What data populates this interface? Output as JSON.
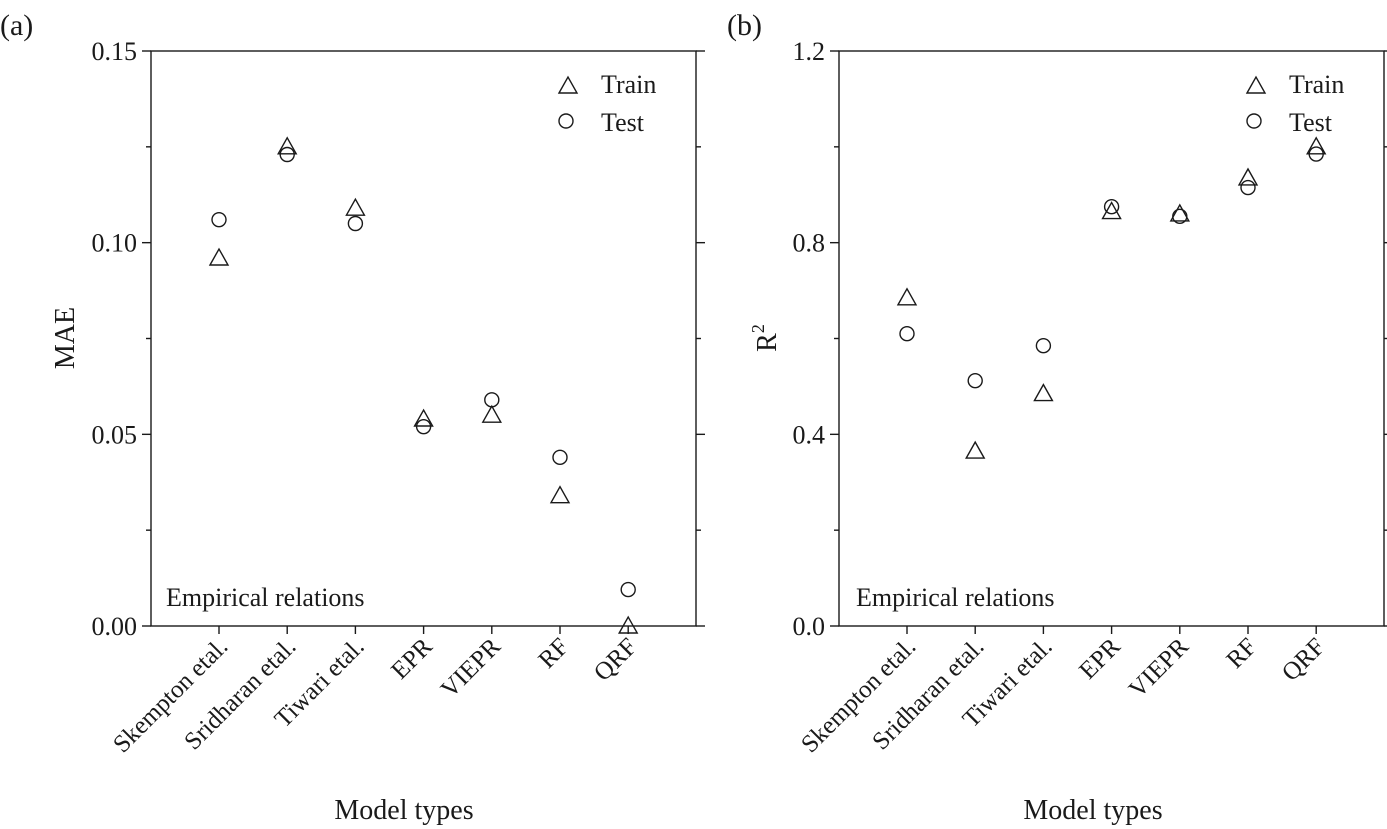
{
  "chart_data": [
    {
      "type": "scatter",
      "panel_label": "(a)",
      "xlabel": "Model types",
      "ylabel": "MAE",
      "categories": [
        "Skempton etal.",
        "Sridharan etal.",
        "Tiwari etal.",
        "EPR",
        "VIEPR",
        "RF",
        "QRF"
      ],
      "ylim": [
        0,
        0.15
      ],
      "yticks": [
        "0.00",
        "0.05",
        "0.10",
        "0.15"
      ],
      "ytick_values": [
        0,
        0.05,
        0.1,
        0.15
      ],
      "annotation": "Empirical relations",
      "legend_position": "top-right",
      "series": [
        {
          "name": "Train",
          "marker": "triangle",
          "values": [
            0.096,
            0.125,
            0.109,
            0.054,
            0.055,
            0.034,
            0.0
          ]
        },
        {
          "name": "Test",
          "marker": "circle",
          "values": [
            0.106,
            0.123,
            0.105,
            0.052,
            0.059,
            0.044,
            0.0095
          ]
        }
      ]
    },
    {
      "type": "scatter",
      "panel_label": "(b)",
      "xlabel": "Model types",
      "ylabel": "R",
      "ylabel_superscript": "2",
      "categories": [
        "Skempton etal.",
        "Sridharan etal.",
        "Tiwari etal.",
        "EPR",
        "VIEPR",
        "RF",
        "QRF"
      ],
      "ylim": [
        0,
        1.2
      ],
      "yticks": [
        "0.0",
        "0.4",
        "0.8",
        "1.2"
      ],
      "ytick_values": [
        0,
        0.4,
        0.8,
        1.2
      ],
      "annotation": "Empirical relations",
      "legend_position": "top-right",
      "series": [
        {
          "name": "Train",
          "marker": "triangle",
          "values": [
            0.685,
            0.365,
            0.485,
            0.865,
            0.86,
            0.935,
            1.0
          ]
        },
        {
          "name": "Test",
          "marker": "circle",
          "values": [
            0.61,
            0.512,
            0.585,
            0.875,
            0.855,
            0.915,
            0.985
          ]
        }
      ]
    }
  ]
}
